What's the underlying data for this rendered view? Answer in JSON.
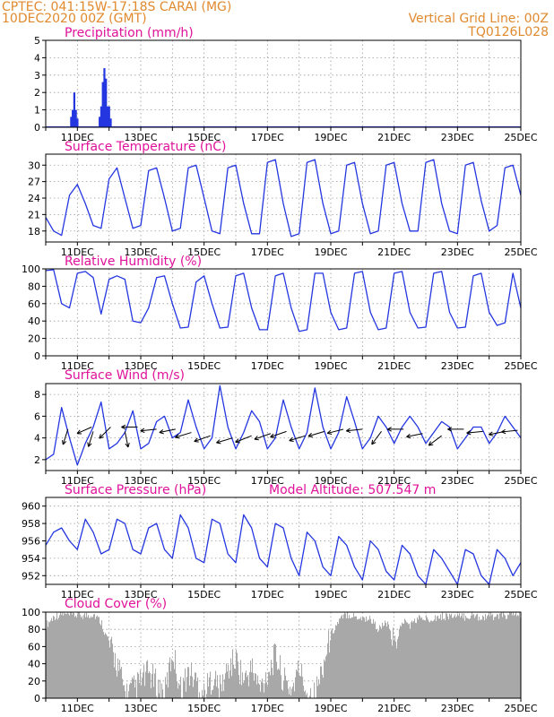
{
  "header": {
    "line1": "CPTEC:   041:15W-17:18S   CARAI (MG)",
    "line2": "10DEC2020 00Z (GMT)",
    "grid_note": "Vertical Grid Line: 00Z",
    "code": "TQ0126L028"
  },
  "colors": {
    "header": "#e08a2e",
    "panel_title": "#e0119a",
    "line": "#2436e0",
    "bar": "#2436e0",
    "cloud": "#a8a8a8",
    "grid": "#9a9a9a",
    "arrow": "#000000"
  },
  "x_labels": [
    "11DEC",
    "13DEC",
    "15DEC",
    "17DEC",
    "19DEC",
    "21DEC",
    "23DEC",
    "25DEC"
  ],
  "model_altitude": "Model Altitude: 507.547 m",
  "chart_data": [
    {
      "id": "precip",
      "type": "bar",
      "title": "Precipitation (mm/h)",
      "ylim": [
        0,
        5
      ],
      "yticks": [
        0,
        1,
        2,
        3,
        4,
        5
      ],
      "x_unit": "days since 10DEC2020 00Z",
      "points": [
        [
          0.8,
          0.6
        ],
        [
          0.85,
          1.0
        ],
        [
          0.9,
          2.0
        ],
        [
          0.95,
          1.0
        ],
        [
          1.0,
          0.5
        ],
        [
          1.7,
          0.6
        ],
        [
          1.75,
          1.2
        ],
        [
          1.8,
          2.6
        ],
        [
          1.85,
          3.4
        ],
        [
          1.9,
          2.8
        ],
        [
          1.95,
          1.2
        ],
        [
          2.0,
          1.2
        ],
        [
          2.05,
          0.5
        ]
      ]
    },
    {
      "id": "temp",
      "type": "line",
      "title": "Surface Temperature (nC)",
      "ylim": [
        16,
        32
      ],
      "yticks": [
        18,
        21,
        24,
        27,
        30
      ],
      "x": [
        0,
        0.25,
        0.5,
        0.75,
        1,
        1.25,
        1.5,
        1.75,
        2,
        2.25,
        2.5,
        2.75,
        3,
        3.25,
        3.5,
        3.75,
        4,
        4.25,
        4.5,
        4.75,
        5,
        5.25,
        5.5,
        5.75,
        6,
        6.25,
        6.5,
        6.75,
        7,
        7.25,
        7.5,
        7.75,
        8,
        8.25,
        8.5,
        8.75,
        9,
        9.25,
        9.5,
        9.75,
        10,
        10.25,
        10.5,
        10.75,
        11,
        11.25,
        11.5,
        11.75,
        12,
        12.25,
        12.5,
        12.75,
        13,
        13.25,
        13.5,
        13.75,
        14,
        14.25,
        14.5,
        14.75,
        15
      ],
      "values": [
        20.5,
        18,
        17.2,
        24.5,
        26.5,
        23,
        19,
        18.5,
        27.5,
        29.5,
        24,
        18.5,
        19,
        29,
        29.5,
        24,
        18,
        18.5,
        29.5,
        30,
        24,
        18,
        17.5,
        29.5,
        30,
        23,
        17.5,
        17.5,
        30.5,
        31,
        23,
        17,
        17.5,
        30.5,
        31,
        23,
        17.5,
        18,
        30,
        30.5,
        23,
        17.5,
        18,
        30,
        30.5,
        23,
        18,
        18,
        30.5,
        31,
        23,
        18,
        17.5,
        30,
        30.5,
        23.5,
        18,
        19,
        29.5,
        30,
        24.5
      ]
    },
    {
      "id": "rh",
      "type": "line",
      "title": "Relative Humidity (%)",
      "ylim": [
        0,
        100
      ],
      "yticks": [
        0,
        20,
        40,
        60,
        80,
        100
      ],
      "x": [
        0,
        0.25,
        0.5,
        0.75,
        1,
        1.25,
        1.5,
        1.75,
        2,
        2.25,
        2.5,
        2.75,
        3,
        3.25,
        3.5,
        3.75,
        4,
        4.25,
        4.5,
        4.75,
        5,
        5.25,
        5.5,
        5.75,
        6,
        6.25,
        6.5,
        6.75,
        7,
        7.25,
        7.5,
        7.75,
        8,
        8.25,
        8.5,
        8.75,
        9,
        9.25,
        9.5,
        9.75,
        10,
        10.25,
        10.5,
        10.75,
        11,
        11.25,
        11.5,
        11.75,
        12,
        12.25,
        12.5,
        12.75,
        13,
        13.25,
        13.5,
        13.75,
        14,
        14.25,
        14.5,
        14.75,
        15
      ],
      "values": [
        98,
        99,
        60,
        55,
        95,
        97,
        90,
        48,
        88,
        92,
        88,
        40,
        38,
        55,
        90,
        92,
        60,
        32,
        33,
        85,
        92,
        60,
        32,
        33,
        92,
        95,
        55,
        30,
        30,
        92,
        95,
        55,
        28,
        30,
        95,
        95,
        50,
        30,
        32,
        95,
        97,
        50,
        30,
        32,
        95,
        97,
        50,
        32,
        33,
        95,
        97,
        50,
        32,
        33,
        92,
        95,
        50,
        35,
        38,
        95,
        55
      ]
    },
    {
      "id": "wind",
      "type": "line",
      "title": "Surface Wind (m/s)",
      "ylim": [
        1,
        9
      ],
      "yticks": [
        2,
        4,
        6,
        8
      ],
      "x": [
        0,
        0.25,
        0.5,
        0.75,
        1,
        1.25,
        1.5,
        1.75,
        2,
        2.25,
        2.5,
        2.75,
        3,
        3.25,
        3.5,
        3.75,
        4,
        4.25,
        4.5,
        4.75,
        5,
        5.25,
        5.5,
        5.75,
        6,
        6.25,
        6.5,
        6.75,
        7,
        7.25,
        7.5,
        7.75,
        8,
        8.25,
        8.5,
        8.75,
        9,
        9.25,
        9.5,
        9.75,
        10,
        10.25,
        10.5,
        10.75,
        11,
        11.25,
        11.5,
        11.75,
        12,
        12.25,
        12.5,
        12.75,
        13,
        13.25,
        13.5,
        13.75,
        14,
        14.25,
        14.5,
        14.75,
        15
      ],
      "values": [
        2,
        2.5,
        6.8,
        4,
        1.5,
        3.5,
        5,
        7.3,
        3,
        3.5,
        4.5,
        6.5,
        3,
        3.5,
        5.5,
        6,
        4,
        4.5,
        7.5,
        5,
        3,
        4,
        8.8,
        5,
        3,
        4.5,
        6.5,
        5.5,
        3,
        4,
        7.5,
        5,
        3,
        4.5,
        8.6,
        5,
        3,
        4.5,
        7.8,
        5.5,
        3,
        4,
        6,
        5,
        3.5,
        5,
        6,
        5,
        3.5,
        4.5,
        5.5,
        5,
        3,
        4,
        5,
        5,
        3.5,
        4.5,
        6,
        5,
        4
      ],
      "arrows": [
        [
          0.7,
          4.8,
          -0.3,
          0.95
        ],
        [
          1.45,
          5.0,
          -0.9,
          0.4
        ],
        [
          1.5,
          4.6,
          -0.3,
          0.95
        ],
        [
          2.05,
          5.0,
          -0.7,
          0.7
        ],
        [
          2.5,
          4.6,
          0.2,
          0.98
        ],
        [
          2.9,
          5.0,
          -1,
          0
        ],
        [
          3.5,
          4.8,
          -1,
          0.1
        ],
        [
          4.1,
          4.8,
          -1,
          0.2
        ],
        [
          4.6,
          4.5,
          -1,
          0.3
        ],
        [
          5.2,
          4.2,
          -1,
          0.35
        ],
        [
          5.9,
          4.0,
          -1,
          0.3
        ],
        [
          6.5,
          4.2,
          -1,
          0.4
        ],
        [
          7.1,
          4.4,
          -1,
          0.35
        ],
        [
          7.6,
          4.6,
          -1,
          0.35
        ],
        [
          8.2,
          4.2,
          -1,
          0.3
        ],
        [
          8.8,
          4.6,
          -1,
          0.3
        ],
        [
          9.4,
          4.8,
          -1,
          0.25
        ],
        [
          10.0,
          4.8,
          -1,
          0.1
        ],
        [
          10.6,
          4.6,
          -0.6,
          0.8
        ],
        [
          11.3,
          4.8,
          -1,
          0
        ],
        [
          11.9,
          4.4,
          -1,
          0.2
        ],
        [
          12.5,
          4.2,
          -0.8,
          0.6
        ],
        [
          13.2,
          4.8,
          -1,
          0
        ],
        [
          13.8,
          4.6,
          -1,
          0.1
        ],
        [
          14.5,
          4.6,
          -1,
          0.2
        ],
        [
          14.9,
          4.7,
          -1,
          0.1
        ]
      ]
    },
    {
      "id": "pres",
      "type": "line",
      "title": "Surface Pressure (hPa)",
      "ylim": [
        951,
        961
      ],
      "yticks": [
        952,
        954,
        956,
        958,
        960
      ],
      "x": [
        0,
        0.25,
        0.5,
        0.75,
        1,
        1.25,
        1.5,
        1.75,
        2,
        2.25,
        2.5,
        2.75,
        3,
        3.25,
        3.5,
        3.75,
        4,
        4.25,
        4.5,
        4.75,
        5,
        5.25,
        5.5,
        5.75,
        6,
        6.25,
        6.5,
        6.75,
        7,
        7.25,
        7.5,
        7.75,
        8,
        8.25,
        8.5,
        8.75,
        9,
        9.25,
        9.5,
        9.75,
        10,
        10.25,
        10.5,
        10.75,
        11,
        11.25,
        11.5,
        11.75,
        12,
        12.25,
        12.5,
        12.75,
        13,
        13.25,
        13.5,
        13.75,
        14,
        14.25,
        14.5,
        14.75,
        15
      ],
      "values": [
        955.5,
        957,
        957.5,
        956,
        955,
        958.5,
        957,
        954.5,
        955,
        958.5,
        958,
        955,
        954.5,
        957.5,
        958,
        955,
        954,
        959,
        957.5,
        954,
        953.5,
        958.5,
        958,
        954.5,
        953.5,
        959,
        957.5,
        954,
        953,
        958,
        957.5,
        954,
        952,
        957,
        956,
        953,
        952,
        956.5,
        955.5,
        953,
        951.5,
        956,
        955,
        952.5,
        951.5,
        955.5,
        954.5,
        952,
        951,
        955,
        954,
        952.5,
        951,
        955,
        954.5,
        952,
        951,
        955,
        954,
        952,
        953.5
      ]
    },
    {
      "id": "cloud",
      "type": "area",
      "title": "Cloud Cover (%)",
      "ylim": [
        0,
        100
      ],
      "yticks": [
        0,
        20,
        40,
        60,
        80,
        100
      ],
      "x": [
        0,
        0.25,
        0.5,
        0.75,
        1,
        1.25,
        1.5,
        1.75,
        2,
        2.25,
        2.5,
        2.75,
        3,
        3.25,
        3.5,
        3.75,
        4,
        4.25,
        4.5,
        4.75,
        5,
        5.25,
        5.5,
        5.75,
        6,
        6.25,
        6.5,
        6.75,
        7,
        7.25,
        7.5,
        7.75,
        8,
        8.25,
        8.5,
        8.75,
        9,
        9.25,
        9.5,
        9.75,
        10,
        10.25,
        10.5,
        10.75,
        11,
        11.25,
        11.5,
        11.75,
        12,
        12.25,
        12.5,
        12.75,
        13,
        13.25,
        13.5,
        13.75,
        14,
        14.25,
        14.5,
        14.75,
        15
      ],
      "values": [
        85,
        95,
        98,
        96,
        97,
        96,
        98,
        88,
        60,
        40,
        5,
        10,
        20,
        30,
        15,
        5,
        55,
        10,
        30,
        20,
        5,
        25,
        10,
        35,
        45,
        20,
        35,
        10,
        30,
        50,
        20,
        10,
        35,
        5,
        5,
        40,
        75,
        90,
        98,
        95,
        93,
        92,
        80,
        88,
        60,
        90,
        85,
        93,
        92,
        94,
        95,
        96,
        94,
        95,
        96,
        94,
        96,
        95,
        96,
        97,
        98
      ]
    }
  ]
}
